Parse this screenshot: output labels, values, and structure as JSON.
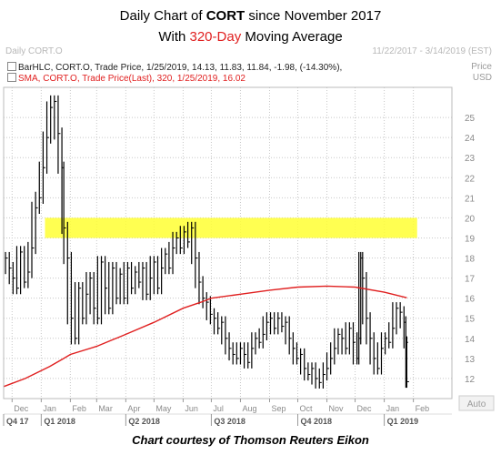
{
  "title_line1_prefix": "Daily Chart of ",
  "title_ticker": "CORT",
  "title_line1_suffix": " since November 2017",
  "title_line2_prefix": "With ",
  "title_line2_accent": "320-Day",
  "title_line2_suffix": " Moving Average",
  "header_left": "Daily CORT.O",
  "header_right": "11/22/2017 - 3/14/2019 (EST)",
  "price_label_1": "Price",
  "price_label_2": "USD",
  "legend_1": "BarHLC, CORT.O, Trade Price, 1/25/2019, 14.13, 11.83, 11.84, -1.98, (-14.30%),",
  "legend_2": "SMA, CORT.O, Trade Price(Last),  320,  1/25/2019, 16.02",
  "auto_label": "Auto",
  "caption": "Chart courtesy of Thomson Reuters Eikon",
  "colors": {
    "bars": "#000000",
    "sma": "#e02020",
    "highlight": "#ffff33",
    "grid": "#c8c8c8",
    "accent": "#e02020"
  },
  "chart_data": {
    "type": "line",
    "y_ticks": [
      12,
      13,
      14,
      15,
      16,
      17,
      18,
      19,
      20,
      21,
      22,
      23,
      24,
      25
    ],
    "ylim": [
      11,
      26.5
    ],
    "xlim": [
      "2017-11-22",
      "2019-03-14"
    ],
    "grid": true,
    "month_ticks": [
      {
        "date": "2017-12-01",
        "label": "Dec"
      },
      {
        "date": "2018-01-01",
        "label": "Jan"
      },
      {
        "date": "2018-02-01",
        "label": "Feb"
      },
      {
        "date": "2018-03-01",
        "label": "Mar"
      },
      {
        "date": "2018-04-01",
        "label": "Apr"
      },
      {
        "date": "2018-05-01",
        "label": "May"
      },
      {
        "date": "2018-06-01",
        "label": "Jun"
      },
      {
        "date": "2018-07-01",
        "label": "Jul"
      },
      {
        "date": "2018-08-01",
        "label": "Aug"
      },
      {
        "date": "2018-09-01",
        "label": "Sep"
      },
      {
        "date": "2018-10-01",
        "label": "Oct"
      },
      {
        "date": "2018-11-01",
        "label": "Nov"
      },
      {
        "date": "2018-12-01",
        "label": "Dec"
      },
      {
        "date": "2019-01-01",
        "label": "Jan"
      },
      {
        "date": "2019-02-01",
        "label": "Feb"
      }
    ],
    "quarter_ticks": [
      {
        "date": "2017-11-22",
        "label": "Q4 17"
      },
      {
        "date": "2018-01-01",
        "label": "Q1 2018"
      },
      {
        "date": "2018-04-01",
        "label": "Q2 2018"
      },
      {
        "date": "2018-07-01",
        "label": "Q3 2018"
      },
      {
        "date": "2018-10-01",
        "label": "Q4 2018"
      },
      {
        "date": "2019-01-01",
        "label": "Q1 2019"
      }
    ],
    "highlight_band": {
      "y_from": 19,
      "y_to": 20,
      "x_from": "2018-01-05",
      "x_to": "2019-02-05"
    },
    "series": [
      {
        "kind": "price_bars",
        "points": [
          {
            "x": "2017-11-24",
            "y": 18.0
          },
          {
            "x": "2017-11-28",
            "y": 17.5
          },
          {
            "x": "2017-12-02",
            "y": 17.0
          },
          {
            "x": "2017-12-06",
            "y": 16.5
          },
          {
            "x": "2017-12-10",
            "y": 18.3
          },
          {
            "x": "2017-12-14",
            "y": 16.8
          },
          {
            "x": "2017-12-18",
            "y": 17.3
          },
          {
            "x": "2017-12-22",
            "y": 18.5
          },
          {
            "x": "2017-12-26",
            "y": 20.5
          },
          {
            "x": "2017-12-30",
            "y": 21.0
          },
          {
            "x": "2018-01-03",
            "y": 22.5
          },
          {
            "x": "2018-01-07",
            "y": 24.0
          },
          {
            "x": "2018-01-11",
            "y": 25.5
          },
          {
            "x": "2018-01-15",
            "y": 25.8
          },
          {
            "x": "2018-01-19",
            "y": 24.2
          },
          {
            "x": "2018-01-23",
            "y": 22.5
          },
          {
            "x": "2018-01-25",
            "y": 19.5
          },
          {
            "x": "2018-01-29",
            "y": 18.0
          },
          {
            "x": "2018-02-02",
            "y": 15.0
          },
          {
            "x": "2018-02-06",
            "y": 14.0
          },
          {
            "x": "2018-02-10",
            "y": 16.5
          },
          {
            "x": "2018-02-14",
            "y": 15.0
          },
          {
            "x": "2018-02-18",
            "y": 16.2
          },
          {
            "x": "2018-02-22",
            "y": 17.0
          },
          {
            "x": "2018-02-26",
            "y": 15.5
          },
          {
            "x": "2018-03-02",
            "y": 15.0
          },
          {
            "x": "2018-03-06",
            "y": 17.8
          },
          {
            "x": "2018-03-10",
            "y": 16.5
          },
          {
            "x": "2018-03-14",
            "y": 15.5
          },
          {
            "x": "2018-03-18",
            "y": 17.5
          },
          {
            "x": "2018-03-22",
            "y": 16.0
          },
          {
            "x": "2018-03-26",
            "y": 17.2
          },
          {
            "x": "2018-03-30",
            "y": 16.0
          },
          {
            "x": "2018-04-03",
            "y": 17.5
          },
          {
            "x": "2018-04-07",
            "y": 16.5
          },
          {
            "x": "2018-04-11",
            "y": 17.3
          },
          {
            "x": "2018-04-15",
            "y": 16.8
          },
          {
            "x": "2018-04-19",
            "y": 17.5
          },
          {
            "x": "2018-04-23",
            "y": 16.2
          },
          {
            "x": "2018-04-27",
            "y": 17.0
          },
          {
            "x": "2018-05-01",
            "y": 17.8
          },
          {
            "x": "2018-05-05",
            "y": 16.5
          },
          {
            "x": "2018-05-09",
            "y": 17.5
          },
          {
            "x": "2018-05-13",
            "y": 18.2
          },
          {
            "x": "2018-05-17",
            "y": 17.5
          },
          {
            "x": "2018-05-21",
            "y": 18.5
          },
          {
            "x": "2018-05-25",
            "y": 19.0
          },
          {
            "x": "2018-05-29",
            "y": 18.5
          },
          {
            "x": "2018-06-02",
            "y": 19.3
          },
          {
            "x": "2018-06-06",
            "y": 18.8
          },
          {
            "x": "2018-06-10",
            "y": 19.5
          },
          {
            "x": "2018-06-14",
            "y": 18.0
          },
          {
            "x": "2018-06-18",
            "y": 16.8
          },
          {
            "x": "2018-06-22",
            "y": 16.0
          },
          {
            "x": "2018-06-26",
            "y": 15.8
          },
          {
            "x": "2018-06-30",
            "y": 15.2
          },
          {
            "x": "2018-07-04",
            "y": 15.0
          },
          {
            "x": "2018-07-08",
            "y": 14.5
          },
          {
            "x": "2018-07-12",
            "y": 14.8
          },
          {
            "x": "2018-07-16",
            "y": 14.0
          },
          {
            "x": "2018-07-20",
            "y": 13.5
          },
          {
            "x": "2018-07-24",
            "y": 13.2
          },
          {
            "x": "2018-07-28",
            "y": 13.0
          },
          {
            "x": "2018-08-01",
            "y": 13.5
          },
          {
            "x": "2018-08-05",
            "y": 13.2
          },
          {
            "x": "2018-08-09",
            "y": 12.8
          },
          {
            "x": "2018-08-13",
            "y": 13.5
          },
          {
            "x": "2018-08-17",
            "y": 14.0
          },
          {
            "x": "2018-08-21",
            "y": 13.8
          },
          {
            "x": "2018-08-25",
            "y": 14.2
          },
          {
            "x": "2018-08-29",
            "y": 14.8
          },
          {
            "x": "2018-09-02",
            "y": 15.0
          },
          {
            "x": "2018-09-06",
            "y": 14.5
          },
          {
            "x": "2018-09-10",
            "y": 15.0
          },
          {
            "x": "2018-09-14",
            "y": 14.6
          },
          {
            "x": "2018-09-18",
            "y": 14.8
          },
          {
            "x": "2018-09-22",
            "y": 14.0
          },
          {
            "x": "2018-09-26",
            "y": 13.5
          },
          {
            "x": "2018-09-30",
            "y": 13.0
          },
          {
            "x": "2018-10-04",
            "y": 13.2
          },
          {
            "x": "2018-10-08",
            "y": 12.5
          },
          {
            "x": "2018-10-12",
            "y": 12.2
          },
          {
            "x": "2018-10-16",
            "y": 12.5
          },
          {
            "x": "2018-10-20",
            "y": 12.0
          },
          {
            "x": "2018-10-24",
            "y": 11.8
          },
          {
            "x": "2018-10-28",
            "y": 12.2
          },
          {
            "x": "2018-11-01",
            "y": 12.5
          },
          {
            "x": "2018-11-05",
            "y": 13.0
          },
          {
            "x": "2018-11-09",
            "y": 13.5
          },
          {
            "x": "2018-11-13",
            "y": 14.2
          },
          {
            "x": "2018-11-17",
            "y": 14.0
          },
          {
            "x": "2018-11-21",
            "y": 13.5
          },
          {
            "x": "2018-11-25",
            "y": 14.5
          },
          {
            "x": "2018-11-29",
            "y": 13.8
          },
          {
            "x": "2018-12-03",
            "y": 13.0
          },
          {
            "x": "2018-12-05",
            "y": 14.0
          },
          {
            "x": "2018-12-07",
            "y": 18.0
          },
          {
            "x": "2018-12-09",
            "y": 17.0
          },
          {
            "x": "2018-12-13",
            "y": 15.0
          },
          {
            "x": "2018-12-17",
            "y": 14.0
          },
          {
            "x": "2018-12-21",
            "y": 13.0
          },
          {
            "x": "2018-12-25",
            "y": 12.5
          },
          {
            "x": "2018-12-29",
            "y": 13.5
          },
          {
            "x": "2019-01-02",
            "y": 14.0
          },
          {
            "x": "2019-01-06",
            "y": 13.8
          },
          {
            "x": "2019-01-10",
            "y": 14.5
          },
          {
            "x": "2019-01-14",
            "y": 15.5
          },
          {
            "x": "2019-01-18",
            "y": 15.3
          },
          {
            "x": "2019-01-22",
            "y": 14.8
          },
          {
            "x": "2019-01-24",
            "y": 13.8
          },
          {
            "x": "2019-01-25",
            "y": 11.84
          }
        ]
      },
      {
        "name": "SMA",
        "kind": "line",
        "points": [
          {
            "x": "2017-11-22",
            "y": 11.6
          },
          {
            "x": "2017-12-15",
            "y": 12.0
          },
          {
            "x": "2018-01-10",
            "y": 12.6
          },
          {
            "x": "2018-01-25",
            "y": 13.0
          },
          {
            "x": "2018-02-01",
            "y": 13.2
          },
          {
            "x": "2018-03-01",
            "y": 13.6
          },
          {
            "x": "2018-04-01",
            "y": 14.2
          },
          {
            "x": "2018-05-01",
            "y": 14.8
          },
          {
            "x": "2018-06-01",
            "y": 15.5
          },
          {
            "x": "2018-06-20",
            "y": 15.8
          },
          {
            "x": "2018-07-01",
            "y": 16.0
          },
          {
            "x": "2018-08-01",
            "y": 16.2
          },
          {
            "x": "2018-09-01",
            "y": 16.4
          },
          {
            "x": "2018-10-01",
            "y": 16.55
          },
          {
            "x": "2018-11-01",
            "y": 16.6
          },
          {
            "x": "2018-12-01",
            "y": 16.55
          },
          {
            "x": "2019-01-01",
            "y": 16.3
          },
          {
            "x": "2019-01-25",
            "y": 16.02
          }
        ]
      }
    ]
  }
}
